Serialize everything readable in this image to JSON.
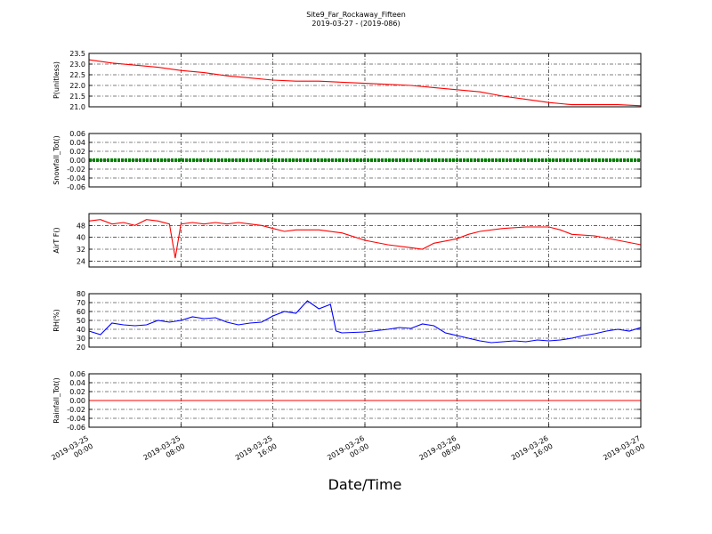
{
  "chart_data": {
    "type": "line",
    "title": "Site9_Far_Rockaway_Fifteen",
    "subtitle": "2019-03-27 - (2019-086)",
    "xlabel": "Date/Time",
    "x_ticks": [
      {
        "l1": "2019-03-25",
        "l2": "00:00"
      },
      {
        "l1": "2019-03-25",
        "l2": "08:00"
      },
      {
        "l1": "2019-03-25",
        "l2": "16:00"
      },
      {
        "l1": "2019-03-26",
        "l2": "00:00"
      },
      {
        "l1": "2019-03-26",
        "l2": "08:00"
      },
      {
        "l1": "2019-03-26",
        "l2": "16:00"
      },
      {
        "l1": "2019-03-27",
        "l2": "00:00"
      }
    ],
    "xlim": [
      "2019-03-25 00:00",
      "2019-03-27 00:00"
    ],
    "grid": true,
    "panels": [
      {
        "ylabel": "P(unitless)",
        "ylim": [
          21.0,
          23.5
        ],
        "yticks": [
          "21.0",
          "21.5",
          "22.0",
          "22.5",
          "23.0",
          "23.5"
        ],
        "color": "#ff0000",
        "points": [
          [
            "2019-03-25 00:00",
            23.2
          ],
          [
            "2019-03-25 02:00",
            23.05
          ],
          [
            "2019-03-25 04:00",
            22.95
          ],
          [
            "2019-03-25 06:00",
            22.85
          ],
          [
            "2019-03-25 08:00",
            22.7
          ],
          [
            "2019-03-25 10:00",
            22.6
          ],
          [
            "2019-03-25 12:00",
            22.45
          ],
          [
            "2019-03-25 14:00",
            22.35
          ],
          [
            "2019-03-25 16:00",
            22.25
          ],
          [
            "2019-03-25 18:00",
            22.2
          ],
          [
            "2019-03-25 20:00",
            22.2
          ],
          [
            "2019-03-25 22:00",
            22.15
          ],
          [
            "2019-03-26 00:00",
            22.1
          ],
          [
            "2019-03-26 02:00",
            22.05
          ],
          [
            "2019-03-26 04:00",
            22.0
          ],
          [
            "2019-03-26 06:00",
            21.9
          ],
          [
            "2019-03-26 08:00",
            21.8
          ],
          [
            "2019-03-26 10:00",
            21.7
          ],
          [
            "2019-03-26 12:00",
            21.5
          ],
          [
            "2019-03-26 14:00",
            21.35
          ],
          [
            "2019-03-26 16:00",
            21.2
          ],
          [
            "2019-03-26 18:00",
            21.1
          ],
          [
            "2019-03-26 20:00",
            21.1
          ],
          [
            "2019-03-26 22:00",
            21.1
          ],
          [
            "2019-03-27 00:00",
            21.05
          ]
        ]
      },
      {
        "ylabel": "Snowfall_Tot()",
        "ylim": [
          -0.06,
          0.06
        ],
        "yticks": [
          "-0.06",
          "-0.04",
          "-0.02",
          "0.00",
          "0.02",
          "0.04",
          "0.06"
        ],
        "color": "#008000",
        "style": "markers",
        "points": [
          [
            "2019-03-25 00:00",
            0.0
          ],
          [
            "2019-03-27 00:00",
            0.0
          ]
        ]
      },
      {
        "ylabel": "AirT F()",
        "ylim": [
          20,
          56
        ],
        "yticks": [
          "24",
          "32",
          "40",
          "48"
        ],
        "color": "#ff0000",
        "points": [
          [
            "2019-03-25 00:00",
            51
          ],
          [
            "2019-03-25 01:00",
            52
          ],
          [
            "2019-03-25 02:00",
            49
          ],
          [
            "2019-03-25 03:00",
            50
          ],
          [
            "2019-03-25 04:00",
            48
          ],
          [
            "2019-03-25 05:00",
            52
          ],
          [
            "2019-03-25 06:00",
            51
          ],
          [
            "2019-03-25 07:00",
            49
          ],
          [
            "2019-03-25 07:30",
            26
          ],
          [
            "2019-03-25 08:00",
            49
          ],
          [
            "2019-03-25 09:00",
            50
          ],
          [
            "2019-03-25 10:00",
            49
          ],
          [
            "2019-03-25 11:00",
            50
          ],
          [
            "2019-03-25 12:00",
            49
          ],
          [
            "2019-03-25 13:00",
            50
          ],
          [
            "2019-03-25 14:00",
            49
          ],
          [
            "2019-03-25 15:00",
            48
          ],
          [
            "2019-03-25 16:00",
            46
          ],
          [
            "2019-03-25 17:00",
            44
          ],
          [
            "2019-03-25 18:00",
            45
          ],
          [
            "2019-03-25 20:00",
            45
          ],
          [
            "2019-03-25 22:00",
            43
          ],
          [
            "2019-03-26 00:00",
            38
          ],
          [
            "2019-03-26 02:00",
            35
          ],
          [
            "2019-03-26 04:00",
            33
          ],
          [
            "2019-03-26 05:00",
            32
          ],
          [
            "2019-03-26 06:00",
            36
          ],
          [
            "2019-03-26 08:00",
            39
          ],
          [
            "2019-03-26 09:00",
            42
          ],
          [
            "2019-03-26 10:00",
            44
          ],
          [
            "2019-03-26 12:00",
            46
          ],
          [
            "2019-03-26 14:00",
            47
          ],
          [
            "2019-03-26 16:00",
            47
          ],
          [
            "2019-03-26 17:00",
            45
          ],
          [
            "2019-03-26 18:00",
            42
          ],
          [
            "2019-03-26 20:00",
            41
          ],
          [
            "2019-03-26 22:00",
            38
          ],
          [
            "2019-03-27 00:00",
            35
          ]
        ]
      },
      {
        "ylabel": "RH(%)",
        "ylim": [
          20,
          80
        ],
        "yticks": [
          "20",
          "30",
          "40",
          "50",
          "60",
          "70",
          "80"
        ],
        "color": "#0000ff",
        "points": [
          [
            "2019-03-25 00:00",
            38
          ],
          [
            "2019-03-25 01:00",
            34
          ],
          [
            "2019-03-25 02:00",
            47
          ],
          [
            "2019-03-25 03:00",
            45
          ],
          [
            "2019-03-25 04:00",
            44
          ],
          [
            "2019-03-25 05:00",
            45
          ],
          [
            "2019-03-25 06:00",
            50
          ],
          [
            "2019-03-25 07:00",
            48
          ],
          [
            "2019-03-25 08:00",
            50
          ],
          [
            "2019-03-25 09:00",
            54
          ],
          [
            "2019-03-25 10:00",
            52
          ],
          [
            "2019-03-25 11:00",
            53
          ],
          [
            "2019-03-25 12:00",
            48
          ],
          [
            "2019-03-25 13:00",
            45
          ],
          [
            "2019-03-25 14:00",
            47
          ],
          [
            "2019-03-25 15:00",
            48
          ],
          [
            "2019-03-25 16:00",
            55
          ],
          [
            "2019-03-25 17:00",
            60
          ],
          [
            "2019-03-25 18:00",
            58
          ],
          [
            "2019-03-25 19:00",
            72
          ],
          [
            "2019-03-25 20:00",
            63
          ],
          [
            "2019-03-25 21:00",
            68
          ],
          [
            "2019-03-25 21:30",
            38
          ],
          [
            "2019-03-25 22:00",
            36
          ],
          [
            "2019-03-26 00:00",
            37
          ],
          [
            "2019-03-26 02:00",
            40
          ],
          [
            "2019-03-26 03:00",
            42
          ],
          [
            "2019-03-26 04:00",
            41
          ],
          [
            "2019-03-26 05:00",
            46
          ],
          [
            "2019-03-26 06:00",
            44
          ],
          [
            "2019-03-26 07:00",
            36
          ],
          [
            "2019-03-26 08:00",
            33
          ],
          [
            "2019-03-26 09:00",
            30
          ],
          [
            "2019-03-26 10:00",
            27
          ],
          [
            "2019-03-26 11:00",
            25
          ],
          [
            "2019-03-26 12:00",
            26
          ],
          [
            "2019-03-26 13:00",
            27
          ],
          [
            "2019-03-26 14:00",
            26
          ],
          [
            "2019-03-26 15:00",
            28
          ],
          [
            "2019-03-26 16:00",
            27
          ],
          [
            "2019-03-26 17:00",
            28
          ],
          [
            "2019-03-26 18:00",
            30
          ],
          [
            "2019-03-26 19:00",
            33
          ],
          [
            "2019-03-26 20:00",
            35
          ],
          [
            "2019-03-26 21:00",
            38
          ],
          [
            "2019-03-26 22:00",
            40
          ],
          [
            "2019-03-26 23:00",
            38
          ],
          [
            "2019-03-27 00:00",
            42
          ]
        ]
      },
      {
        "ylabel": "Rainfall_Tot()",
        "ylim": [
          -0.06,
          0.06
        ],
        "yticks": [
          "-0.06",
          "-0.04",
          "-0.02",
          "0.00",
          "0.02",
          "0.04",
          "0.06"
        ],
        "color": "#ff0000",
        "points": [
          [
            "2019-03-25 00:00",
            0.0
          ],
          [
            "2019-03-27 00:00",
            0.0
          ]
        ]
      }
    ]
  }
}
